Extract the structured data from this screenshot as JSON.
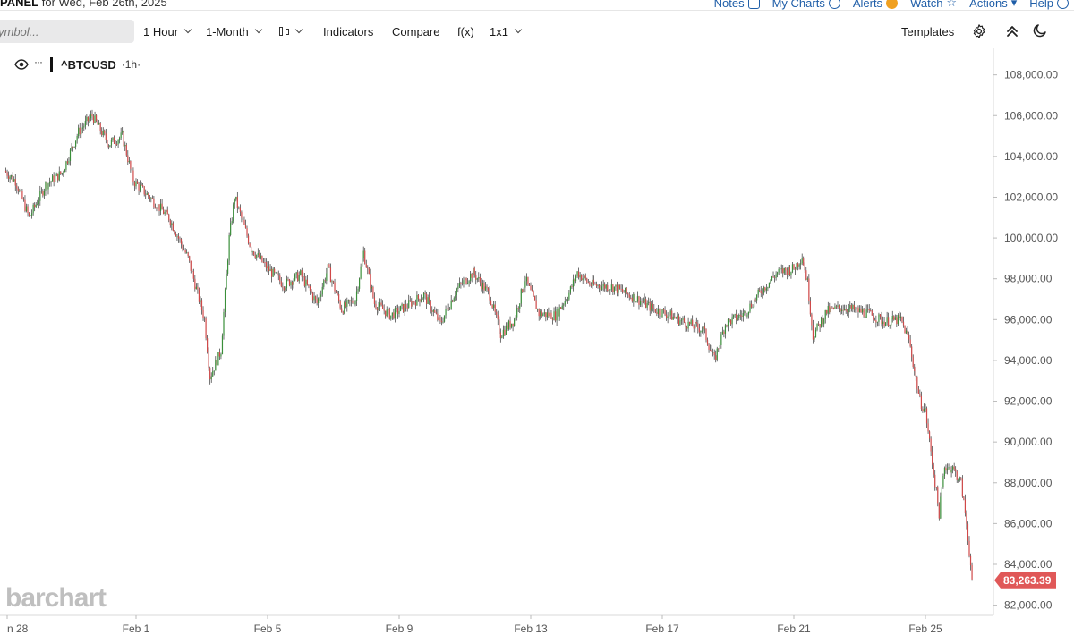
{
  "header": {
    "panel_label": "PANEL",
    "date_text": "for Wed, Feb 26th, 2025",
    "links": [
      {
        "label": "Notes",
        "icon": "edit-icon"
      },
      {
        "label": "My Charts",
        "icon": "plus-circle-icon"
      },
      {
        "label": "Alerts",
        "icon": "alert-icon"
      },
      {
        "label": "Watch",
        "icon": "star-icon"
      },
      {
        "label": "Actions",
        "icon": "chevron-down-icon"
      },
      {
        "label": "Help",
        "icon": "help-icon"
      }
    ]
  },
  "toolbar": {
    "symbol_placeholder": "ymbol...",
    "interval": "1 Hour",
    "period": "1-Month",
    "indicators": "Indicators",
    "compare": "Compare",
    "fx": "f(x)",
    "layout": "1x1",
    "templates": "Templates"
  },
  "legend": {
    "symbol": "^BTCUSD",
    "interval": "·1h·",
    "dots": "···"
  },
  "watermark": "barchart",
  "colors": {
    "up": "#3a8f3a",
    "down": "#d04848",
    "wick": "#333333",
    "last_price_bg": "#e05858",
    "accent_link": "#1f5ea8"
  },
  "chart_data": {
    "type": "candlestick",
    "symbol": "^BTCUSD",
    "interval": "1h",
    "ylim": [
      81500,
      109300
    ],
    "y_ticks": [
      "108,000.00",
      "106,000.00",
      "104,000.00",
      "102,000.00",
      "100,000.00",
      "98,000.00",
      "96,000.00",
      "94,000.00",
      "92,000.00",
      "90,000.00",
      "88,000.00",
      "86,000.00",
      "84,000.00",
      "82,000.00"
    ],
    "x_ticks": [
      "n 28",
      "Feb 1",
      "Feb 5",
      "Feb 9",
      "Feb 13",
      "Feb 17",
      "Feb 21",
      "Feb 25"
    ],
    "last_price": "83,263.39",
    "path": [
      {
        "t": "Jan 28 00:00",
        "p": 103300
      },
      {
        "t": "Jan 28 08:00",
        "p": 102800
      },
      {
        "t": "Jan 28 18:00",
        "p": 101000
      },
      {
        "t": "Jan 29 06:00",
        "p": 102600
      },
      {
        "t": "Jan 29 18:00",
        "p": 103200
      },
      {
        "t": "Jan 30 06:00",
        "p": 105200
      },
      {
        "t": "Jan 30 16:00",
        "p": 106000
      },
      {
        "t": "Jan 31 04:00",
        "p": 104600
      },
      {
        "t": "Jan 31 14:00",
        "p": 105000
      },
      {
        "t": "Jan 31 22:00",
        "p": 102800
      },
      {
        "t": "Feb 1 10:00",
        "p": 102000
      },
      {
        "t": "Feb 2 00:00",
        "p": 101000
      },
      {
        "t": "Feb 2 14:00",
        "p": 99000
      },
      {
        "t": "Feb 3 02:00",
        "p": 96000
      },
      {
        "t": "Feb 3 06:00",
        "p": 93200
      },
      {
        "t": "Feb 3 14:00",
        "p": 94500
      },
      {
        "t": "Feb 3 20:00",
        "p": 100000
      },
      {
        "t": "Feb 4 00:00",
        "p": 102000
      },
      {
        "t": "Feb 4 12:00",
        "p": 99500
      },
      {
        "t": "Feb 5 00:00",
        "p": 98500
      },
      {
        "t": "Feb 5 12:00",
        "p": 97700
      },
      {
        "t": "Feb 6 00:00",
        "p": 98200
      },
      {
        "t": "Feb 6 12:00",
        "p": 96800
      },
      {
        "t": "Feb 6 20:00",
        "p": 98500
      },
      {
        "t": "Feb 7 06:00",
        "p": 96500
      },
      {
        "t": "Feb 7 16:00",
        "p": 97000
      },
      {
        "t": "Feb 7 22:00",
        "p": 99300
      },
      {
        "t": "Feb 8 06:00",
        "p": 96800
      },
      {
        "t": "Feb 8 18:00",
        "p": 96200
      },
      {
        "t": "Feb 9 06:00",
        "p": 96700
      },
      {
        "t": "Feb 9 18:00",
        "p": 97200
      },
      {
        "t": "Feb 10 06:00",
        "p": 95800
      },
      {
        "t": "Feb 10 18:00",
        "p": 97500
      },
      {
        "t": "Feb 11 06:00",
        "p": 98300
      },
      {
        "t": "Feb 11 18:00",
        "p": 97200
      },
      {
        "t": "Feb 12 02:00",
        "p": 95300
      },
      {
        "t": "Feb 12 12:00",
        "p": 96000
      },
      {
        "t": "Feb 12 20:00",
        "p": 98000
      },
      {
        "t": "Feb 13 06:00",
        "p": 96300
      },
      {
        "t": "Feb 13 18:00",
        "p": 96200
      },
      {
        "t": "Feb 14 04:00",
        "p": 97300
      },
      {
        "t": "Feb 14 10:00",
        "p": 98300
      },
      {
        "t": "Feb 14 20:00",
        "p": 97700
      },
      {
        "t": "Feb 15 12:00",
        "p": 97600
      },
      {
        "t": "Feb 16 06:00",
        "p": 97000
      },
      {
        "t": "Feb 16 18:00",
        "p": 96500
      },
      {
        "t": "Feb 17 06:00",
        "p": 96200
      },
      {
        "t": "Feb 17 18:00",
        "p": 95800
      },
      {
        "t": "Feb 18 06:00",
        "p": 95500
      },
      {
        "t": "Feb 18 14:00",
        "p": 94000
      },
      {
        "t": "Feb 18 22:00",
        "p": 95800
      },
      {
        "t": "Feb 19 12:00",
        "p": 96300
      },
      {
        "t": "Feb 20 00:00",
        "p": 97400
      },
      {
        "t": "Feb 20 12:00",
        "p": 98300
      },
      {
        "t": "Feb 21 00:00",
        "p": 98500
      },
      {
        "t": "Feb 21 06:00",
        "p": 99100
      },
      {
        "t": "Feb 21 10:00",
        "p": 97800
      },
      {
        "t": "Feb 21 14:00",
        "p": 95200
      },
      {
        "t": "Feb 22 00:00",
        "p": 96400
      },
      {
        "t": "Feb 22 12:00",
        "p": 96600
      },
      {
        "t": "Feb 23 06:00",
        "p": 96300
      },
      {
        "t": "Feb 23 18:00",
        "p": 95900
      },
      {
        "t": "Feb 24 06:00",
        "p": 96000
      },
      {
        "t": "Feb 24 12:00",
        "p": 95000
      },
      {
        "t": "Feb 24 20:00",
        "p": 92000
      },
      {
        "t": "Feb 25 00:00",
        "p": 91500
      },
      {
        "t": "Feb 25 06:00",
        "p": 88500
      },
      {
        "t": "Feb 25 10:00",
        "p": 86500
      },
      {
        "t": "Feb 25 14:00",
        "p": 88800
      },
      {
        "t": "Feb 25 20:00",
        "p": 88700
      },
      {
        "t": "Feb 26 02:00",
        "p": 88000
      },
      {
        "t": "Feb 26 06:00",
        "p": 86000
      },
      {
        "t": "Feb 26 10:00",
        "p": 83263
      }
    ],
    "colors": {
      "up": "#3a8f3a",
      "down": "#d04848"
    }
  }
}
